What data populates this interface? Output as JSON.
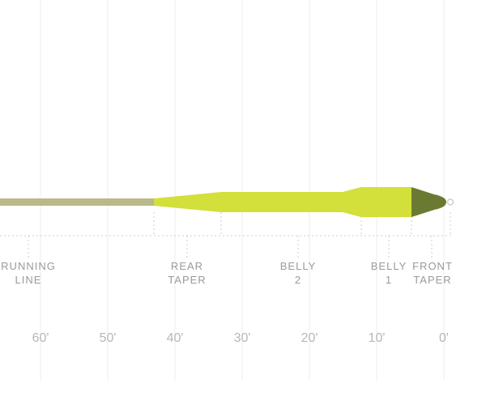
{
  "colors": {
    "running_line": "#b9b98a",
    "body": "#d3df3a",
    "front_taper": "#6b7a33",
    "loop": "#c8c8c8",
    "grid": "#ececec",
    "dashed": "#cccccc",
    "label": "#9a9a9a",
    "tick": "#b7b7b7"
  },
  "segments": [
    {
      "name": "running-line",
      "lines": [
        "RUNNING",
        "LINE"
      ]
    },
    {
      "name": "rear-taper",
      "lines": [
        "REAR",
        "TAPER"
      ]
    },
    {
      "name": "belly-2",
      "lines": [
        "BELLY",
        "2"
      ]
    },
    {
      "name": "belly-1",
      "lines": [
        "BELLY",
        "1"
      ]
    },
    {
      "name": "front-taper",
      "lines": [
        "FRONT",
        "TAPER"
      ]
    }
  ],
  "distance_ticks": [
    "60'",
    "50'",
    "40'",
    "30'",
    "20'",
    "10'",
    "0'"
  ]
}
